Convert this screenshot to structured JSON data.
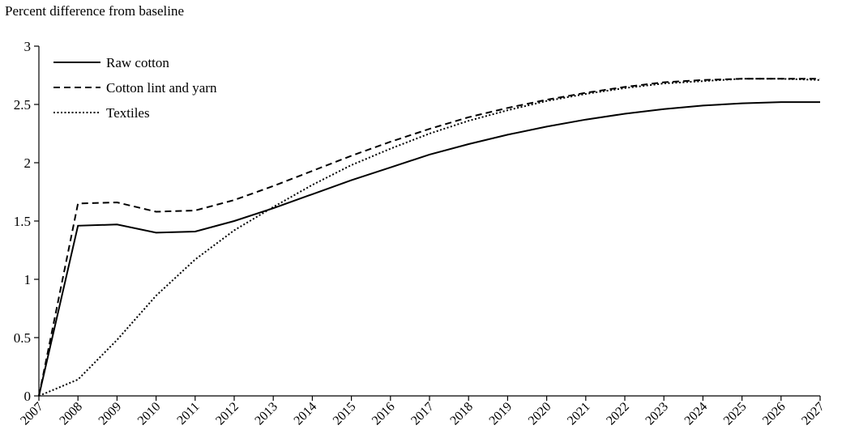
{
  "chart_data": {
    "type": "line",
    "ylabel": "Percent difference from baseline",
    "xlabel": "",
    "x": [
      "2007",
      "2008",
      "2009",
      "2010",
      "2011",
      "2012",
      "2013",
      "2014",
      "2015",
      "2016",
      "2017",
      "2018",
      "2019",
      "2020",
      "2021",
      "2022",
      "2023",
      "2024",
      "2025",
      "2026",
      "2027"
    ],
    "ylim": [
      0,
      3
    ],
    "yticks": [
      "0",
      "0.5",
      "1",
      "1.5",
      "2",
      "2.5",
      "3"
    ],
    "legend_position": "top-left",
    "grid": false,
    "series": [
      {
        "name": "Raw cotton",
        "style": "solid",
        "values": [
          0,
          1.46,
          1.47,
          1.4,
          1.41,
          1.5,
          1.61,
          1.73,
          1.85,
          1.96,
          2.07,
          2.16,
          2.24,
          2.31,
          2.37,
          2.42,
          2.46,
          2.49,
          2.51,
          2.52,
          2.52
        ]
      },
      {
        "name": "Cotton lint and yarn",
        "style": "dashed",
        "values": [
          0,
          1.65,
          1.66,
          1.58,
          1.59,
          1.68,
          1.8,
          1.93,
          2.06,
          2.18,
          2.29,
          2.39,
          2.47,
          2.54,
          2.6,
          2.65,
          2.69,
          2.71,
          2.72,
          2.72,
          2.72
        ]
      },
      {
        "name": "Textiles",
        "style": "dotted",
        "values": [
          0,
          0.14,
          0.48,
          0.86,
          1.17,
          1.42,
          1.62,
          1.81,
          1.98,
          2.12,
          2.25,
          2.36,
          2.45,
          2.53,
          2.59,
          2.64,
          2.68,
          2.7,
          2.72,
          2.72,
          2.71
        ]
      }
    ]
  }
}
